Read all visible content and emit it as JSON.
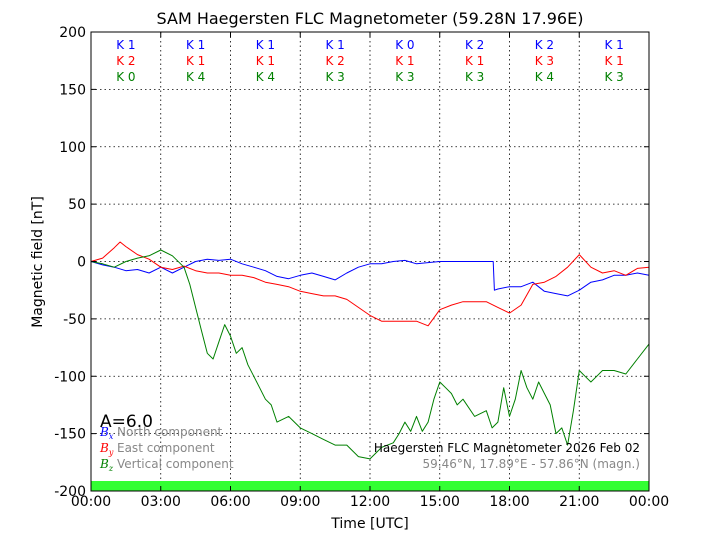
{
  "chart_data": {
    "type": "line",
    "title": "SAM Haegersten FLC Magnetometer (59.28N 17.96E)",
    "xlabel": "Time [UTC]",
    "ylabel": "Magnetic field [nT]",
    "xlim": [
      0,
      24
    ],
    "ylim": [
      -200,
      200
    ],
    "grid": true,
    "xtick_labels": [
      "00:00",
      "03:00",
      "06:00",
      "09:00",
      "12:00",
      "15:00",
      "18:00",
      "21:00",
      "00:00"
    ],
    "ytick_labels": [
      "200",
      "150",
      "100",
      "50",
      "0",
      "-50",
      "-100",
      "-150",
      "-200"
    ],
    "k_indices": {
      "north": [
        "K 1",
        "K 1",
        "K 1",
        "K 1",
        "K 0",
        "K 2",
        "K 2",
        "K 1"
      ],
      "east": [
        "K 2",
        "K 1",
        "K 1",
        "K 2",
        "K 1",
        "K 1",
        "K 3",
        "K 1"
      ],
      "vertical": [
        "K 0",
        "K 4",
        "K 4",
        "K 3",
        "K 3",
        "K 3",
        "K 4",
        "K 3"
      ]
    },
    "a_index": "A=6.0",
    "legend": [
      {
        "symbol": "B",
        "sub": "x",
        "label": "North component",
        "color": "#0000ff"
      },
      {
        "symbol": "B",
        "sub": "y",
        "label": "East component",
        "color": "#ff0000"
      },
      {
        "symbol": "B",
        "sub": "z",
        "label": "Vertical component",
        "color": "#008000"
      }
    ],
    "annotation_title": "Haegersten FLC Magnetometer 2026 Feb 02",
    "annotation_coords": "59.46°N, 17.89°E - 57.86°N (magn.)",
    "series": [
      {
        "name": "North component",
        "color": "#0000ff",
        "x": [
          0,
          0.5,
          1,
          1.5,
          2,
          2.5,
          3,
          3.5,
          4,
          4.5,
          5,
          5.5,
          6,
          6.5,
          7,
          7.5,
          8,
          8.5,
          9,
          9.5,
          10,
          10.5,
          11,
          11.5,
          12,
          12.5,
          13,
          13.5,
          14,
          14.5,
          15,
          15.5,
          16,
          16.5,
          17,
          17.3,
          17.35,
          17.5,
          18,
          18.5,
          19,
          19.5,
          20,
          20.5,
          21,
          21.5,
          22,
          22.5,
          23,
          23.5,
          24
        ],
        "values": [
          0,
          -3,
          -5,
          -8,
          -7,
          -10,
          -5,
          -10,
          -5,
          0,
          2,
          1,
          2,
          -2,
          -5,
          -8,
          -13,
          -15,
          -12,
          -10,
          -13,
          -16,
          -10,
          -5,
          -2,
          -2,
          0,
          1,
          -2,
          -1,
          0,
          0,
          0,
          0,
          0,
          0,
          -25,
          -24,
          -22,
          -22,
          -18,
          -26,
          -28,
          -30,
          -25,
          -18,
          -16,
          -12,
          -12,
          -10,
          -12
        ]
      },
      {
        "name": "East component",
        "color": "#ff0000",
        "x": [
          0,
          0.5,
          1,
          1.25,
          1.5,
          2,
          2.5,
          3,
          3.5,
          4,
          4.5,
          5,
          5.5,
          6,
          6.5,
          7,
          7.5,
          8,
          8.5,
          9,
          9.5,
          10,
          10.5,
          11,
          11.5,
          12,
          12.5,
          13,
          13.5,
          14,
          14.5,
          15,
          15.5,
          16,
          16.5,
          17,
          17.5,
          18,
          18.5,
          19,
          19.5,
          20,
          20.5,
          21,
          21.5,
          22,
          22.5,
          23,
          23.5,
          24
        ],
        "values": [
          0,
          3,
          12,
          17,
          13,
          6,
          2,
          -5,
          -7,
          -4,
          -8,
          -10,
          -10,
          -12,
          -12,
          -14,
          -18,
          -20,
          -22,
          -26,
          -28,
          -30,
          -30,
          -33,
          -40,
          -47,
          -52,
          -52,
          -52,
          -52,
          -56,
          -42,
          -38,
          -35,
          -35,
          -35,
          -40,
          -45,
          -38,
          -20,
          -18,
          -13,
          -5,
          6,
          -5,
          -10,
          -8,
          -12,
          -6,
          -5
        ]
      },
      {
        "name": "Vertical component",
        "color": "#008000",
        "x": [
          0,
          0.5,
          1,
          1.5,
          2,
          2.5,
          3,
          3.5,
          4,
          4.25,
          4.5,
          4.75,
          5,
          5.25,
          5.5,
          5.75,
          6,
          6.25,
          6.5,
          6.75,
          7,
          7.25,
          7.5,
          7.75,
          8,
          8.5,
          9,
          9.5,
          10,
          10.5,
          11,
          11.5,
          12,
          12.5,
          13,
          13.25,
          13.5,
          13.75,
          14,
          14.25,
          14.5,
          14.75,
          15,
          15.25,
          15.5,
          15.75,
          16,
          16.5,
          17,
          17.25,
          17.5,
          17.75,
          18,
          18.25,
          18.5,
          18.75,
          19,
          19.25,
          19.5,
          19.75,
          20,
          20.25,
          20.5,
          20.75,
          21,
          21.25,
          21.5,
          21.75,
          22,
          22.5,
          23,
          23.5,
          24
        ],
        "values": [
          0,
          -2,
          -5,
          0,
          3,
          5,
          10,
          5,
          -5,
          -20,
          -40,
          -60,
          -80,
          -85,
          -70,
          -55,
          -65,
          -80,
          -75,
          -90,
          -100,
          -110,
          -120,
          -125,
          -140,
          -135,
          -145,
          -150,
          -155,
          -160,
          -160,
          -170,
          -172,
          -162,
          -158,
          -150,
          -140,
          -148,
          -135,
          -148,
          -140,
          -120,
          -105,
          -110,
          -115,
          -125,
          -120,
          -135,
          -130,
          -145,
          -140,
          -110,
          -135,
          -120,
          -95,
          -110,
          -120,
          -105,
          -115,
          -125,
          -150,
          -145,
          -160,
          -130,
          -95,
          -100,
          -105,
          -100,
          -95,
          -95,
          -98,
          -85,
          -72
        ]
      }
    ]
  }
}
